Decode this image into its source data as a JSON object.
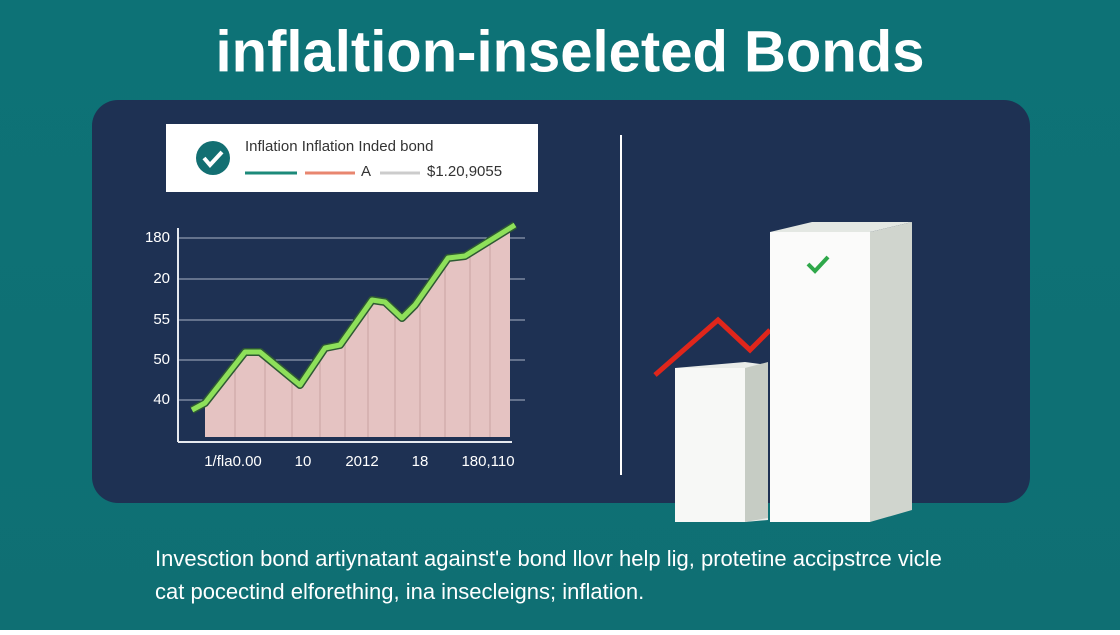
{
  "header": {
    "title": "inflaltion-inseleted Bonds"
  },
  "legend": {
    "label": "Inflation Inflation Inded bond",
    "marker": "A",
    "value": "$1.20,9055"
  },
  "chart": {
    "y_labels": [
      "180",
      "20",
      "55",
      "50",
      "40"
    ],
    "x_labels": [
      "1/fla0.00",
      "10",
      "2012",
      "18",
      "180,110"
    ]
  },
  "caption": [
    "Invesction bond artiynatant against'e bond llovr help lig, protetine accipstrce vicle",
    "cat pocectind elforething, ina insecleigns; inflation."
  ]
}
